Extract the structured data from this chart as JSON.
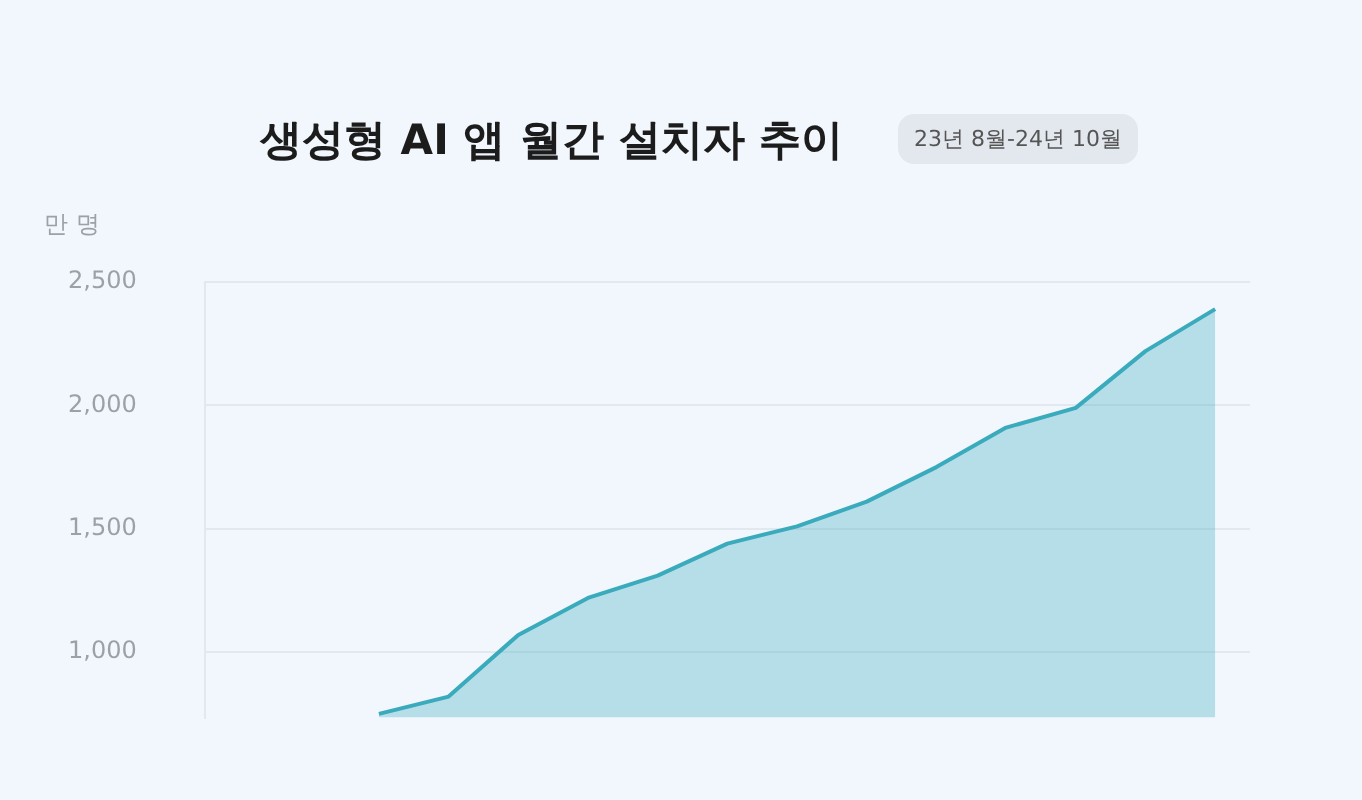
{
  "chart_data": {
    "type": "area",
    "title": "생성형 AI 앱 월간 설치자 추이",
    "subtitle": "23년 8월-24년 10월",
    "ylabel": "만 명",
    "categories": [
      null,
      null,
      null,
      null,
      null,
      null,
      null,
      null,
      null,
      null,
      null,
      null,
      null,
      null,
      null
    ],
    "series": [
      {
        "color": "#3aabbd",
        "values": [
          null,
          null,
          750,
          820,
          1070,
          1220,
          1310,
          1440,
          1510,
          1610,
          1750,
          1910,
          1990,
          2220,
          2390
        ]
      }
    ],
    "ylim": [
      735,
      2500
    ],
    "yticks": [
      {
        "value": 1000,
        "label": "1,000"
      },
      {
        "value": 1500,
        "label": "1,500"
      },
      {
        "value": 2000,
        "label": "2,000"
      },
      {
        "value": 2500,
        "label": "2,500"
      }
    ],
    "grid": "y",
    "tick_labels": "y",
    "marker": "none"
  }
}
